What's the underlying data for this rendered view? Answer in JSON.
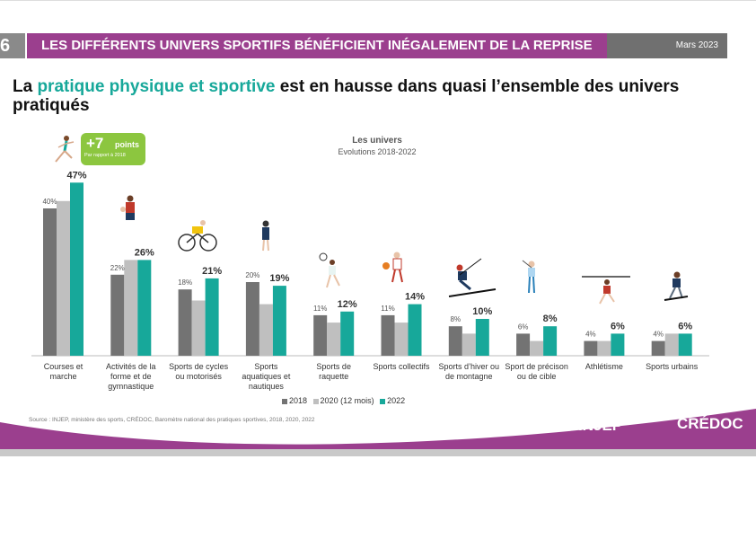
{
  "header": {
    "page_number": "6",
    "title": "LES DIFFÉRENTS UNIVERS SPORTIFS BÉNÉFICIENT INÉGALEMENT DE LA REPRISE",
    "date": "Mars 2023"
  },
  "headline": {
    "part1": "La ",
    "highlight": "pratique physique et sportive",
    "part2": " est en hausse dans quasi l’ensemble des univers pratiqués"
  },
  "badge": {
    "big": "+7",
    "small": "points",
    "ref": "Par rapport à 2018"
  },
  "chart_data": {
    "type": "bar",
    "title": "Les univers",
    "subtitle": "Evolutions 2018-2022",
    "categories": [
      "Courses et marche",
      "Activités de la forme et de gymnastique",
      "Sports de cycles ou motorisés",
      "Sports aquatiques et nautiques",
      "Sports de raquette",
      "Sports collectifs",
      "Sports d’hiver ou de montagne",
      "Sport de précison ou de cible",
      "Athlétisme",
      "Sports urbains"
    ],
    "series": [
      {
        "name": "2018",
        "color": "#737373",
        "values": [
          40,
          22,
          18,
          20,
          11,
          11,
          8,
          6,
          4,
          4
        ]
      },
      {
        "name": "2020 (12 mois)",
        "color": "#bfbfbf",
        "values": [
          42,
          26,
          15,
          14,
          9,
          9,
          6,
          4,
          4,
          6
        ]
      },
      {
        "name": "2022",
        "color": "#17a89a",
        "values": [
          47,
          26,
          21,
          19,
          12,
          14,
          10,
          8,
          6,
          6
        ]
      }
    ],
    "labels_2018": [
      "40%",
      "22%",
      "18%",
      "20%",
      "11%",
      "11%",
      "8%",
      "6%",
      "4%",
      "4%"
    ],
    "labels_2022": [
      "47%",
      "26%",
      "21%",
      "19%",
      "12%",
      "14%",
      "10%",
      "8%",
      "6%",
      "6%"
    ],
    "ylim": [
      0,
      50
    ],
    "grid": false,
    "legend_position": "bottom"
  },
  "source": "Source : INJEP, ministère des sports, CRÉDOC, Baromètre national des pratiques sportives, 2018, 2020, 2022",
  "footer": {
    "logo1": "INJEP",
    "logo2": "CRÉDOC"
  },
  "colors": {
    "purple": "#9b3f8e",
    "teal": "#17a89a",
    "green": "#8cc63f",
    "grey_dark": "#737373",
    "grey_light": "#bfbfbf"
  }
}
